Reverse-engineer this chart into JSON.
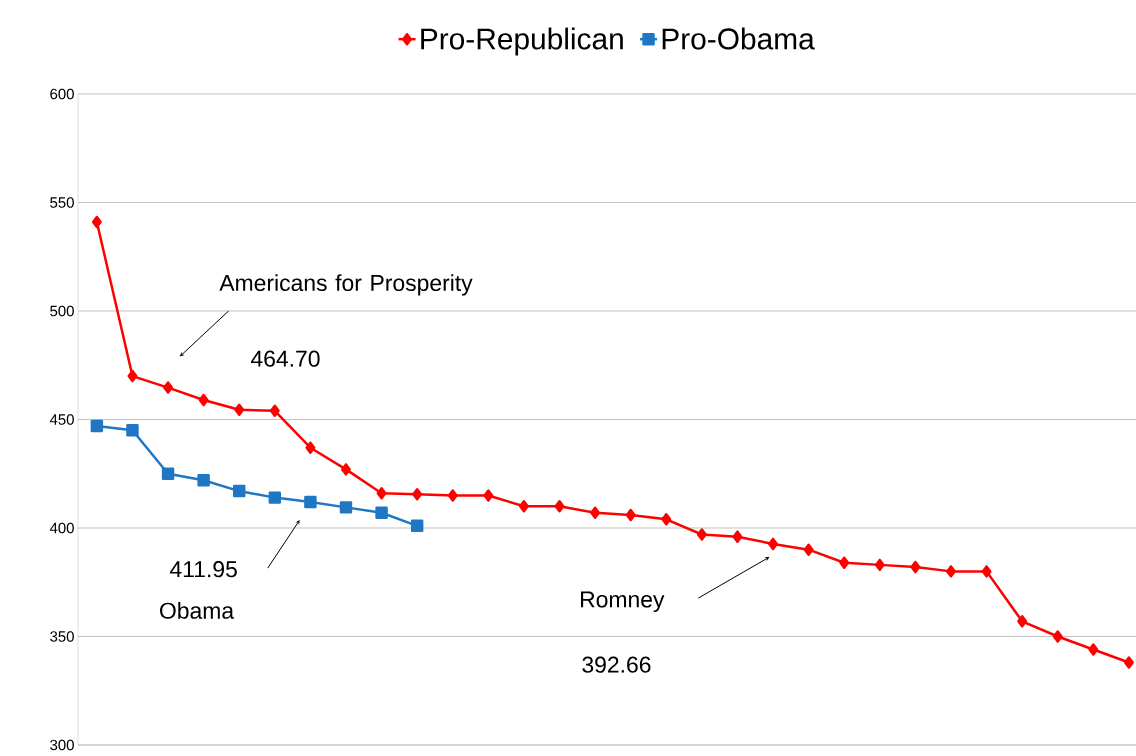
{
  "chart_data": {
    "type": "line",
    "categories": [
      null,
      null,
      null,
      null,
      null,
      null,
      null,
      null,
      null,
      null,
      null,
      null,
      null,
      null,
      null,
      null,
      null,
      null,
      null,
      null,
      null,
      null,
      null,
      null,
      null,
      null,
      null,
      null,
      null,
      null
    ],
    "series": [
      {
        "name": "Pro-Republican",
        "color": "#ff0000",
        "marker": "diamond",
        "values": [
          541,
          470,
          464.7,
          459,
          454.5,
          454,
          437,
          427,
          416,
          415.5,
          415,
          415,
          410,
          410,
          407,
          406,
          404,
          397,
          396,
          392.66,
          390,
          384,
          383,
          382,
          380,
          380,
          357,
          350,
          344,
          338
        ]
      },
      {
        "name": "Pro-Obama",
        "color": "#1f77c4",
        "marker": "square",
        "values": [
          447,
          445,
          425,
          422,
          417,
          414,
          411.95,
          409.5,
          407,
          401,
          null,
          null,
          null,
          null,
          null,
          null,
          null,
          null,
          null,
          null,
          null,
          null,
          null,
          null,
          null,
          null,
          null,
          null,
          null,
          null
        ]
      }
    ],
    "ylim": [
      300,
      600
    ],
    "yticks": [
      300,
      350,
      400,
      450,
      500,
      550,
      600
    ],
    "grid": "y",
    "legend": "top",
    "tick_labels": "y",
    "annotations": [
      "Americans for Prosperity",
      "464.70",
      "411.95",
      "Obama",
      "Romney",
      "392.66"
    ]
  }
}
